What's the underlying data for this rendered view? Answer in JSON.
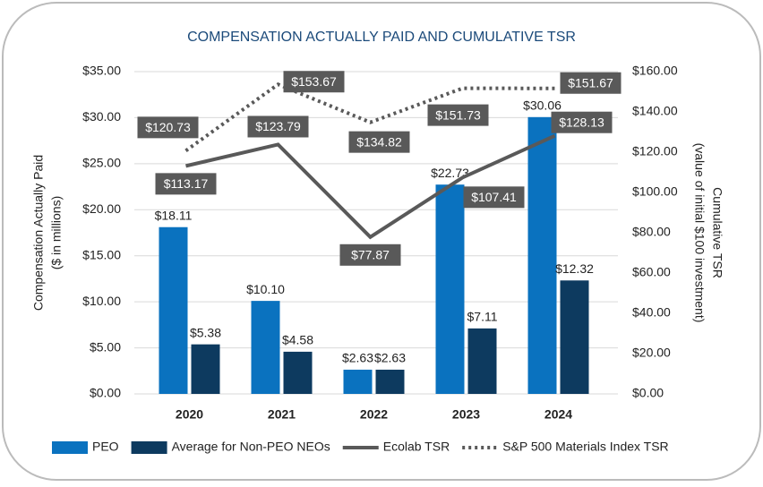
{
  "chart_data": {
    "type": "bar",
    "title": "COMPENSATION ACTUALLY PAID AND CUMULATIVE TSR",
    "ylabel": [
      "Compensation Actually Paid",
      "($ in millions)"
    ],
    "y2label": [
      "Cumulative TSR",
      "(value of initial $100 investment)"
    ],
    "categories": [
      "2020",
      "2021",
      "2022",
      "2023",
      "2024"
    ],
    "ylim": [
      0,
      35
    ],
    "yticks": [
      {
        "value": 0,
        "label": "$0.00"
      },
      {
        "value": 5,
        "label": "$5.00"
      },
      {
        "value": 10,
        "label": "$10.00"
      },
      {
        "value": 15,
        "label": "$15.00"
      },
      {
        "value": 20,
        "label": "$20.00"
      },
      {
        "value": 25,
        "label": "$25.00"
      },
      {
        "value": 30,
        "label": "$30.00"
      },
      {
        "value": 35,
        "label": "$35.00"
      }
    ],
    "y2lim": [
      0,
      160
    ],
    "y2ticks": [
      {
        "value": 0,
        "label": "$0.00"
      },
      {
        "value": 20,
        "label": "$20.00"
      },
      {
        "value": 40,
        "label": "$40.00"
      },
      {
        "value": 60,
        "label": "$60.00"
      },
      {
        "value": 80,
        "label": "$80.00"
      },
      {
        "value": 100,
        "label": "$100.00"
      },
      {
        "value": 120,
        "label": "$120.00"
      },
      {
        "value": 140,
        "label": "$140.00"
      },
      {
        "value": 160,
        "label": "$160.00"
      }
    ],
    "grid": true,
    "legend": "bottom",
    "series": [
      {
        "name": "PEO",
        "type": "bar",
        "color": "#0a72bf",
        "values": [
          18.11,
          10.1,
          2.63,
          22.73,
          30.06
        ],
        "value_labels": [
          "$18.11",
          "$10.10",
          "$2.63",
          "$22.73",
          "$30.06"
        ]
      },
      {
        "name": "Average for Non-PEO NEOs",
        "type": "bar",
        "color": "#0d3a5f",
        "values": [
          5.38,
          4.58,
          2.63,
          7.11,
          12.32
        ],
        "value_labels": [
          "$5.38",
          "$4.58",
          "$2.63",
          "$7.11",
          "$12.32"
        ]
      },
      {
        "name": "Ecolab TSR",
        "type": "line",
        "axis": "y2",
        "color": "#595959",
        "line_style": "solid",
        "values": [
          113.17,
          123.79,
          77.87,
          107.41,
          128.13
        ],
        "value_labels": [
          "$113.17",
          "$123.79",
          "$77.87",
          "$107.41",
          "$128.13"
        ]
      },
      {
        "name": "S&P 500 Materials Index TSR",
        "type": "line",
        "axis": "y2",
        "color": "#595959",
        "line_style": "dotted",
        "values": [
          120.73,
          153.67,
          134.82,
          151.73,
          151.67
        ],
        "value_labels": [
          "$120.73",
          "$153.67",
          "$134.82",
          "$151.73",
          "$151.67"
        ]
      }
    ]
  }
}
